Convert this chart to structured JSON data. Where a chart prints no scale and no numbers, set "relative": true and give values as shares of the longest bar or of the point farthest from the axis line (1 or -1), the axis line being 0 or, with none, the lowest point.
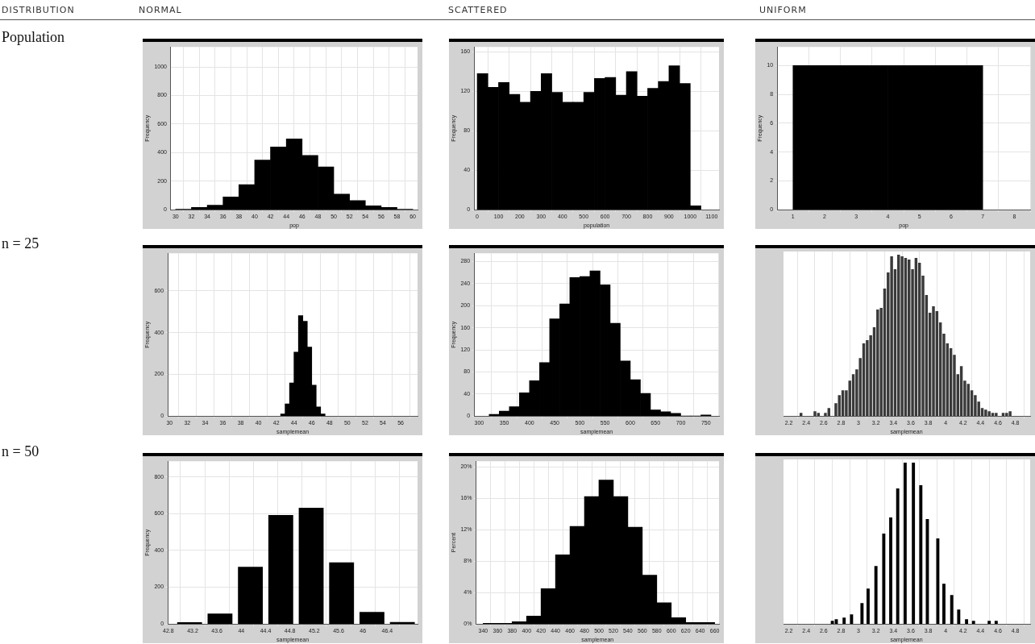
{
  "chart_data": [
    {
      "type": "other",
      "annotations": [
        "DISTRIBUTION",
        "NORMAL",
        "SCATTERED",
        "UNIFORM",
        "Population",
        "n = 25",
        "n = 50"
      ]
    },
    {
      "type": "histogram",
      "xlabel": "pop",
      "ylabel": "Frequency",
      "bins": [
        30,
        32,
        34,
        36,
        38,
        40,
        42,
        44,
        46,
        48,
        50,
        52,
        54,
        56,
        58,
        60
      ],
      "values": [
        4,
        16,
        32,
        90,
        176,
        348,
        440,
        496,
        380,
        300,
        110,
        64,
        28,
        16,
        4
      ],
      "color": "#000000",
      "xlim": [
        29.4,
        60.6
      ],
      "xticks": [
        30,
        32,
        34,
        36,
        38,
        40,
        42,
        44,
        46,
        48,
        50,
        52,
        54,
        56,
        58,
        60
      ],
      "ylim": [
        0,
        1140
      ],
      "yticks": [
        0,
        200,
        400,
        600,
        800,
        1000
      ],
      "grid": true
    },
    {
      "type": "histogram",
      "xlabel": "population",
      "ylabel": "Frequency",
      "bins": [
        0,
        50,
        100,
        150,
        200,
        250,
        300,
        350,
        400,
        450,
        500,
        550,
        600,
        650,
        700,
        750,
        800,
        850,
        900,
        950,
        1000,
        1050
      ],
      "values": [
        138,
        124,
        129,
        117,
        109,
        120,
        138,
        119,
        109,
        109,
        119,
        133,
        134,
        116,
        140,
        115,
        123,
        130,
        146,
        128,
        4
      ],
      "color": "#000000",
      "xlim": [
        -15,
        1135
      ],
      "xticks": [
        0,
        100,
        200,
        300,
        400,
        500,
        600,
        700,
        800,
        900,
        1000,
        1100
      ],
      "ylim": [
        0,
        165
      ],
      "yticks": [
        0,
        40,
        80,
        120,
        160
      ],
      "grid": true
    },
    {
      "type": "histogram",
      "xlabel": "pop",
      "ylabel": "Frequency",
      "bins": [
        1,
        2,
        3,
        4,
        5,
        6,
        7
      ],
      "values": [
        10,
        10,
        10,
        10,
        10,
        10
      ],
      "color": "#000000",
      "xlim": [
        0.5,
        8.5
      ],
      "xticks": [
        1,
        2,
        3,
        4,
        5,
        6,
        7,
        8
      ],
      "ylim": [
        0,
        11.3
      ],
      "yticks": [
        0,
        2,
        4,
        6,
        8,
        10
      ],
      "grid": true
    },
    {
      "type": "histogram",
      "xlabel": "samplemean",
      "ylabel": "Frequency",
      "bins": [
        42.5,
        43,
        43.5,
        44,
        44.5,
        45,
        45.5,
        46,
        46.5,
        47,
        47.5
      ],
      "values": [
        10,
        58,
        159,
        306,
        481,
        454,
        331,
        148,
        44,
        10
      ],
      "color": "#000000",
      "xlim": [
        29.8,
        57.9
      ],
      "xticks": [
        30,
        32,
        34,
        36,
        38,
        40,
        42,
        44,
        46,
        48,
        50,
        52,
        54,
        56
      ],
      "ylim": [
        0,
        780
      ],
      "yticks": [
        0,
        200,
        400,
        600
      ],
      "grid": true
    },
    {
      "type": "histogram",
      "xlabel": "samplemean",
      "ylabel": "Frequency",
      "bins": [
        320,
        340,
        360,
        380,
        400,
        420,
        440,
        460,
        480,
        500,
        520,
        540,
        560,
        580,
        600,
        620,
        640,
        660,
        680,
        700,
        720,
        740,
        760
      ],
      "values": [
        3,
        9,
        17,
        42,
        64,
        97,
        176,
        203,
        251,
        253,
        263,
        238,
        168,
        100,
        66,
        41,
        11,
        8,
        5,
        0,
        0,
        2
      ],
      "color": "#000000",
      "xlim": [
        290,
        776
      ],
      "xticks": [
        300,
        350,
        400,
        450,
        500,
        550,
        600,
        650,
        700,
        750
      ],
      "ylim": [
        0,
        295
      ],
      "yticks": [
        0,
        40,
        80,
        120,
        160,
        200,
        240,
        280
      ],
      "grid": true
    },
    {
      "type": "bar",
      "xlabel": "samplemean",
      "relative": true,
      "tick_labels": "x",
      "x": [
        2.34,
        2.38,
        2.42,
        2.46,
        2.5,
        2.54,
        2.58,
        2.62,
        2.66,
        2.7,
        2.74,
        2.78,
        2.82,
        2.86,
        2.9,
        2.94,
        2.98,
        3.02,
        3.06,
        3.1,
        3.14,
        3.18,
        3.22,
        3.26,
        3.3,
        3.34,
        3.38,
        3.42,
        3.46,
        3.5,
        3.54,
        3.58,
        3.62,
        3.66,
        3.7,
        3.74,
        3.78,
        3.82,
        3.86,
        3.9,
        3.94,
        3.98,
        4.02,
        4.06,
        4.1,
        4.14,
        4.18,
        4.22,
        4.26,
        4.3,
        4.34,
        4.38,
        4.42,
        4.46,
        4.5,
        4.54,
        4.58,
        4.62,
        4.66,
        4.7,
        4.74
      ],
      "values": [
        0.02,
        0,
        0,
        0,
        0.03,
        0.02,
        0,
        0.02,
        0.05,
        0,
        0.08,
        0.13,
        0.16,
        0.16,
        0.22,
        0.26,
        0.29,
        0.36,
        0.45,
        0.47,
        0.5,
        0.55,
        0.66,
        0.67,
        0.79,
        0.89,
        0.99,
        0.91,
        1,
        0.99,
        0.98,
        0.97,
        0.91,
        0.98,
        0.95,
        0.87,
        0.75,
        0.64,
        0.68,
        0.65,
        0.58,
        0.51,
        0.45,
        0.42,
        0.38,
        0.26,
        0.31,
        0.22,
        0.2,
        0.16,
        0.13,
        0.09,
        0.05,
        0.04,
        0.03,
        0.02,
        0.02,
        0,
        0.02,
        0.02,
        0.03
      ],
      "color": "#3a3a3a",
      "xlim": [
        2.13,
        4.97
      ],
      "xticks": [
        2.2,
        2.4,
        2.6,
        2.8,
        3,
        3.2,
        3.4,
        3.6,
        3.8,
        4,
        4.2,
        4.4,
        4.6,
        4.8
      ],
      "grid": "x"
    },
    {
      "type": "histogram",
      "xlabel": "samplemean",
      "ylabel": "Frequency",
      "bins": [
        42.9,
        43.4,
        43.9,
        44.4,
        44.9,
        45.4,
        45.9,
        46.4,
        46.9
      ],
      "values": [
        8,
        55,
        309,
        591,
        630,
        333,
        64,
        9
      ],
      "color": "#000000",
      "xlim": [
        42.79,
        46.9
      ],
      "xticks": [
        42.8,
        43.2,
        43.6,
        44,
        44.4,
        44.8,
        45.2,
        45.6,
        46,
        46.4
      ],
      "ylim": [
        0,
        885
      ],
      "yticks": [
        0,
        200,
        400,
        600,
        800
      ],
      "grid": true
    },
    {
      "type": "histogram",
      "xlabel": "samplemean",
      "ylabel": "Percent",
      "bins": [
        340,
        360,
        380,
        400,
        420,
        440,
        460,
        480,
        500,
        520,
        540,
        560,
        580,
        600,
        620,
        640,
        660
      ],
      "values": [
        0.1,
        0.1,
        0.3,
        1,
        4.5,
        8.8,
        12.4,
        16.2,
        18.3,
        16.2,
        12.3,
        6.2,
        2.7,
        0.8,
        0.2,
        0.2
      ],
      "color": "#000000",
      "xlim": [
        330,
        666
      ],
      "xticks": [
        340,
        360,
        380,
        400,
        420,
        440,
        460,
        480,
        500,
        520,
        540,
        560,
        580,
        600,
        620,
        640,
        660
      ],
      "ylim": [
        0,
        20.7
      ],
      "yticks": [
        {
          "value": 0,
          "label": "0%"
        },
        {
          "value": 4,
          "label": "4%"
        },
        {
          "value": 8,
          "label": "8%"
        },
        {
          "value": 12,
          "label": "12%"
        },
        {
          "value": 16,
          "label": "16%"
        },
        {
          "value": 20,
          "label": "20%"
        }
      ],
      "grid": true
    },
    {
      "type": "bar",
      "xlabel": "samplemean",
      "relative": true,
      "tick_labels": "x",
      "x": [
        2.7,
        2.745,
        2.835,
        2.92,
        3.04,
        3.11,
        3.2,
        3.29,
        3.37,
        3.45,
        3.535,
        3.63,
        3.715,
        3.79,
        3.91,
        3.98,
        4.07,
        4.15,
        4.24,
        4.32,
        4.5,
        4.58
      ],
      "values": [
        0.02,
        0.03,
        0.04,
        0.06,
        0.13,
        0.22,
        0.36,
        0.56,
        0.66,
        0.84,
        1,
        1,
        0.86,
        0.65,
        0.53,
        0.25,
        0.18,
        0.09,
        0.03,
        0.02,
        0.02,
        0.02
      ],
      "color": "#000000",
      "xlim": [
        2.13,
        4.97
      ],
      "xticks": [
        2.2,
        2.4,
        2.6,
        2.8,
        3,
        3.2,
        3.4,
        3.6,
        3.8,
        4,
        4.2,
        4.4,
        4.6,
        4.8
      ],
      "grid": "x"
    }
  ]
}
